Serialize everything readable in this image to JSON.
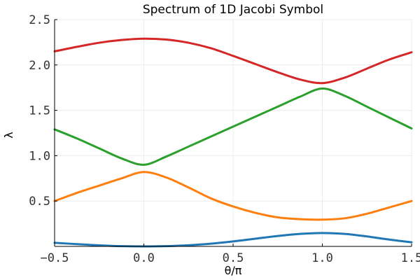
{
  "chart_data": {
    "type": "line",
    "title": "Spectrum of 1D Jacobi Symbol",
    "xlabel": "θ/π",
    "ylabel": "λ",
    "xlim": [
      -0.5,
      1.5
    ],
    "ylim": [
      0.0,
      2.5
    ],
    "xticks": [
      -0.5,
      0.0,
      0.5,
      1.0,
      1.5
    ],
    "xtick_labels": [
      "−0.5",
      "0.0",
      "0.5",
      "1.0",
      "1.5"
    ],
    "yticks": [
      0.5,
      1.0,
      1.5,
      2.0,
      2.5
    ],
    "ytick_labels": [
      "0.5",
      "1.0",
      "1.5",
      "2.0",
      "2.5"
    ],
    "grid": true,
    "legend": "none",
    "x": [
      -0.5,
      -0.375,
      -0.25,
      -0.125,
      0.0,
      0.125,
      0.25,
      0.375,
      0.5,
      0.625,
      0.75,
      0.875,
      1.0,
      1.125,
      1.25,
      1.375,
      1.5
    ],
    "series": [
      {
        "color": "#1f77b4",
        "values": [
          0.04,
          0.025,
          0.012,
          0.003,
          0.0,
          0.003,
          0.013,
          0.03,
          0.055,
          0.085,
          0.115,
          0.138,
          0.148,
          0.138,
          0.11,
          0.075,
          0.045
        ]
      },
      {
        "color": "#ff7f0e",
        "values": [
          0.5,
          0.59,
          0.67,
          0.75,
          0.82,
          0.76,
          0.65,
          0.53,
          0.44,
          0.37,
          0.32,
          0.3,
          0.295,
          0.31,
          0.36,
          0.43,
          0.5
        ]
      },
      {
        "color": "#2ca02c",
        "values": [
          1.29,
          1.19,
          1.08,
          0.97,
          0.9,
          0.99,
          1.1,
          1.21,
          1.32,
          1.43,
          1.54,
          1.65,
          1.74,
          1.66,
          1.54,
          1.42,
          1.3
        ]
      },
      {
        "color": "#d62728",
        "values": [
          2.15,
          2.2,
          2.245,
          2.275,
          2.29,
          2.28,
          2.245,
          2.185,
          2.1,
          2.01,
          1.92,
          1.84,
          1.8,
          1.86,
          1.96,
          2.06,
          2.14
        ]
      }
    ]
  }
}
